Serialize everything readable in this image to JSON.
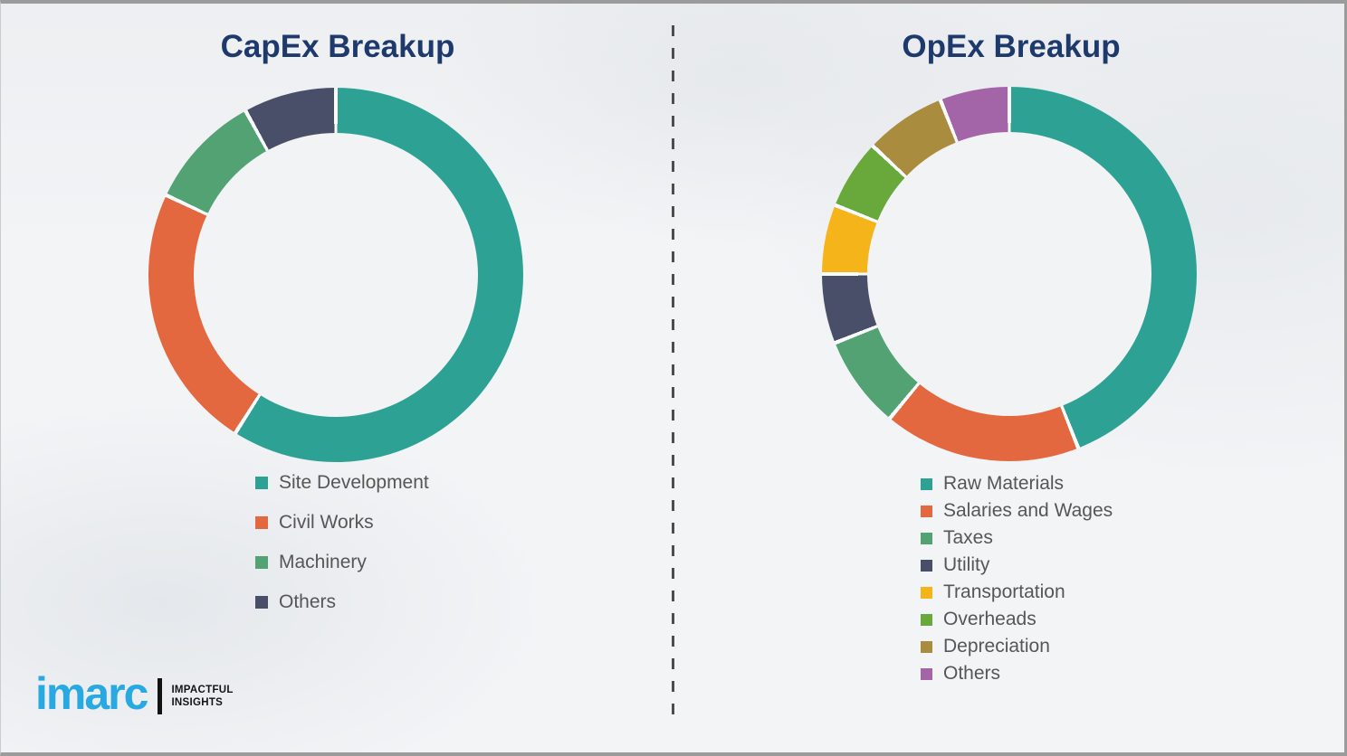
{
  "page": {
    "background": "#f3f4f6",
    "border_color": "#9b9b9b",
    "divider_color": "#4d4d4d"
  },
  "chart_data": [
    {
      "type": "pie",
      "subtype": "donut",
      "title": "CapEx Breakup",
      "labels": [
        "Site Development",
        "Civil Works",
        "Machinery",
        "Others"
      ],
      "values": [
        59,
        23,
        10,
        8
      ],
      "unit": "percent-estimated-from-arc-angles",
      "colors": [
        "#2da294",
        "#e4683f",
        "#52a274",
        "#494f68"
      ],
      "hole_ratio": 0.76,
      "legend_position": "below-left",
      "slice_gap_color": "#fbfcfd"
    },
    {
      "type": "pie",
      "subtype": "donut",
      "title": "OpEx Breakup",
      "labels": [
        "Raw Materials",
        "Salaries and Wages",
        "Taxes",
        "Utility",
        "Transportation",
        "Overheads",
        "Depreciation",
        "Others"
      ],
      "values": [
        44,
        17,
        8,
        6,
        6,
        6,
        7,
        6
      ],
      "unit": "percent-estimated-from-arc-angles",
      "colors": [
        "#2da294",
        "#e4683f",
        "#52a274",
        "#494f68",
        "#f6b41b",
        "#69a93c",
        "#a98c3e",
        "#a465a8"
      ],
      "hole_ratio": 0.76,
      "legend_position": "below-left",
      "slice_gap_color": "#fbfcfd"
    }
  ],
  "logo": {
    "brand": "imarc",
    "tagline_line1": "IMPACTFUL",
    "tagline_line2": "INSIGHTS",
    "brand_color": "#29a9e1"
  }
}
